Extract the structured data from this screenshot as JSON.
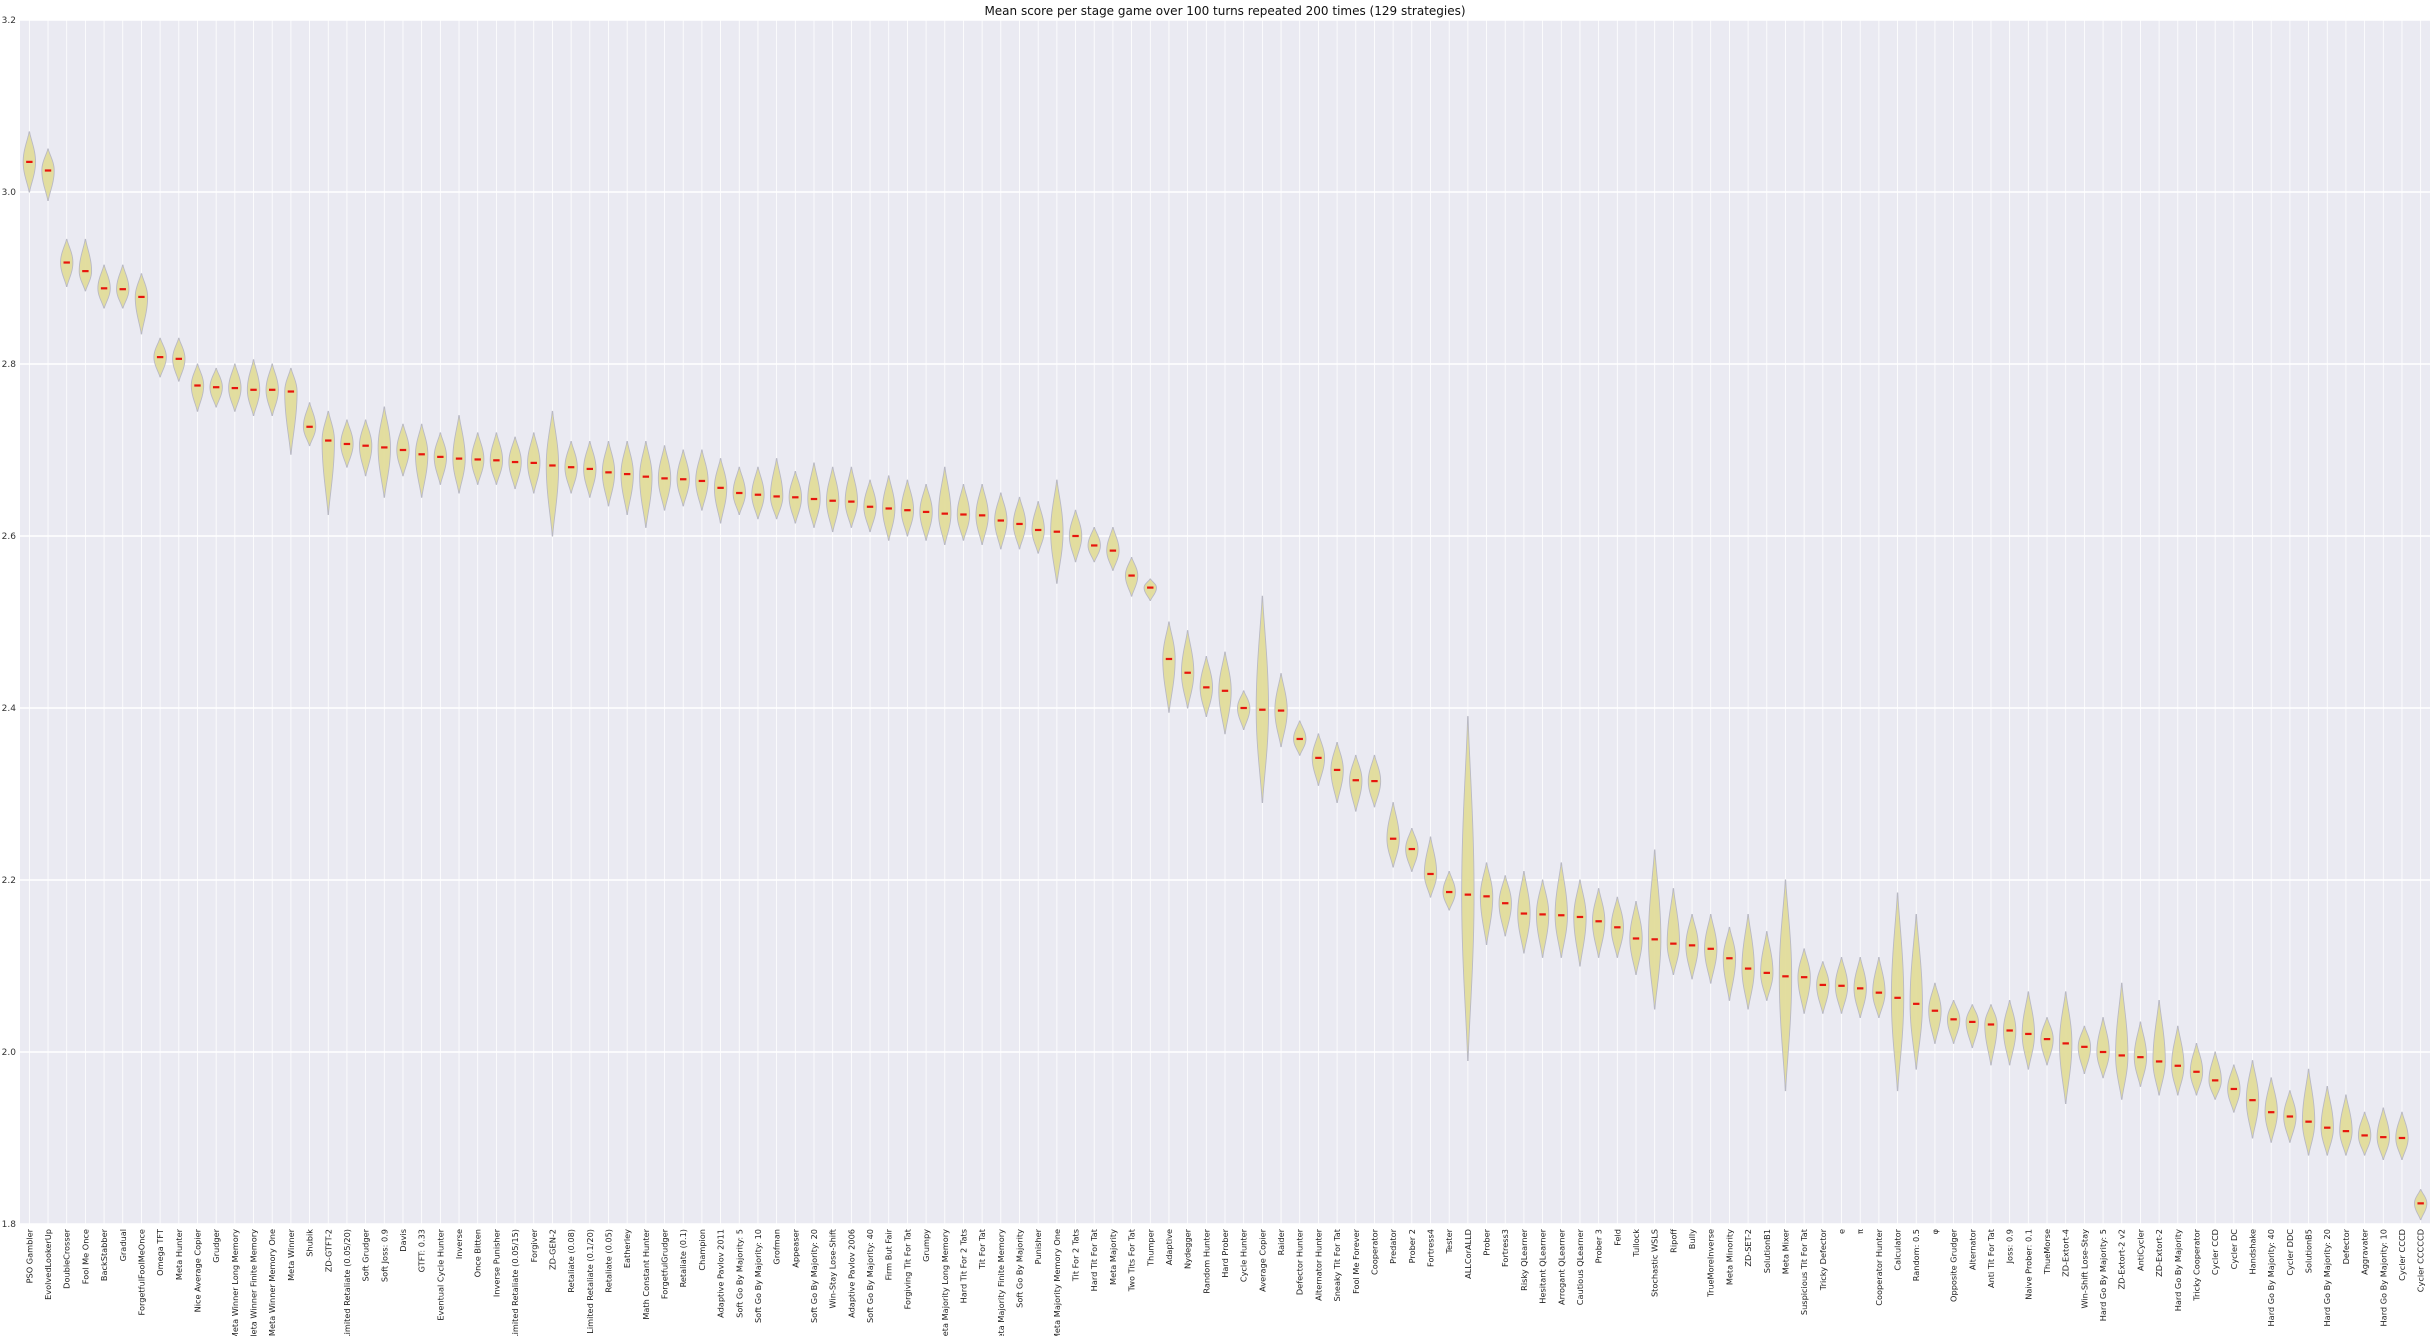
{
  "chart_data": {
    "type": "violin",
    "title": "Mean score per stage game over 100 turns repeated 200 times (129 strategies)",
    "xlabel": "",
    "ylabel": "",
    "ylim": [
      1.8,
      3.2
    ],
    "yticks": [
      1.8,
      2.0,
      2.2,
      2.4,
      2.6,
      2.8,
      3.0,
      3.2
    ],
    "ytick_labels": [
      "1.8",
      "2.0",
      "2.2",
      "2.4",
      "2.6",
      "2.8",
      "3.0",
      "3.2"
    ],
    "grid": true,
    "colors": {
      "background": "#eaeaf2",
      "grid": "#ffffff",
      "violin": "#e2dc9a",
      "median": "#e8150c"
    },
    "categories": [
      "PSO Gambler",
      "EvolvedLookerUp",
      "DoubleCrosser",
      "Fool Me Once",
      "BackStabber",
      "Gradual",
      "ForgetfulFoolMeOnce",
      "Omega TFT",
      "Meta Hunter",
      "Nice Average Copier",
      "Grudger",
      "Meta Winner Long Memory",
      "Meta Winner Finite Memory",
      "Meta Winner Memory One",
      "Meta Winner",
      "Shubik",
      "ZD-GTFT-2",
      "Limited Retaliate (0.05/20)",
      "Soft Grudger",
      "Soft Joss: 0.9",
      "Davis",
      "GTFT: 0.33",
      "Eventual Cycle Hunter",
      "Inverse",
      "Once Bitten",
      "Inverse Punisher",
      "Limited Retaliate (0.05/15)",
      "Forgiver",
      "ZD-GEN-2",
      "Retaliate (0.08)",
      "Limited Retaliate (0.1/20)",
      "Retaliate (0.05)",
      "Eatherley",
      "Math Constant Hunter",
      "ForgetfulGrudger",
      "Retaliate (0.1)",
      "Champion",
      "Adaptive Pavlov 2011",
      "Soft Go By Majority: 5",
      "Soft Go By Majority: 10",
      "Grofman",
      "Appeaser",
      "Soft Go By Majority: 20",
      "Win-Stay Lose-Shift",
      "Adaptive Pavlov 2006",
      "Soft Go By Majority: 40",
      "Firm But Fair",
      "Forgiving Tit For Tat",
      "Grumpy",
      "Meta Majority Long Memory",
      "Hard Tit For 2 Tats",
      "Tit For Tat",
      "Meta Majority Finite Memory",
      "Soft Go By Majority",
      "Punisher",
      "Meta Majority Memory One",
      "Tit For 2 Tats",
      "Hard Tit For Tat",
      "Meta Majority",
      "Two Tits For Tat",
      "Thumper",
      "Adaptive",
      "Nydegger",
      "Random Hunter",
      "Hard Prober",
      "Cycle Hunter",
      "Average Copier",
      "Raider",
      "Defector Hunter",
      "Alternator Hunter",
      "Sneaky Tit For Tat",
      "Fool Me Forever",
      "Cooperator",
      "Predator",
      "Prober 2",
      "Fortress4",
      "Tester",
      "ALLCorALLD",
      "Prober",
      "Fortress3",
      "Risky QLearner",
      "Hesitant QLearner",
      "Arrogant QLearner",
      "Cautious QLearner",
      "Prober 3",
      "Feld",
      "Tullock",
      "Stochastic WSLS",
      "Ripoff",
      "Bully",
      "TrueMoreInverse",
      "Meta Minority",
      "ZD-SET-2",
      "SolutionB1",
      "Meta Mixer",
      "Suspicious Tit For Tat",
      "Tricky Defector",
      "e",
      "π",
      "Cooperator Hunter",
      "Calculator",
      "Random: 0.5",
      "φ",
      "Opposite Grudger",
      "Alternator",
      "Anti Tit For Tat",
      "Joss: 0.9",
      "Naive Prober: 0.1",
      "ThueMorse",
      "ZD-Extort-4",
      "Win-Shift Lose-Stay",
      "Hard Go By Majority: 5",
      "ZD-Extort-2 v2",
      "AntiCycler",
      "ZD-Extort-2",
      "Hard Go By Majority",
      "Tricky Cooperator",
      "Cycler CCD",
      "Cycler DC",
      "Handshake",
      "Hard Go By Majority: 40",
      "Cycler DDC",
      "SolutionB5",
      "Hard Go By Majority: 20",
      "Defector",
      "Aggravater",
      "Hard Go By Majority: 10",
      "Cycler CCCD",
      "Cycler CCCCCD"
    ],
    "medians": [
      3.035,
      3.025,
      2.918,
      2.908,
      2.888,
      2.887,
      2.878,
      2.808,
      2.806,
      2.775,
      2.773,
      2.772,
      2.77,
      2.77,
      2.768,
      2.727,
      2.711,
      2.707,
      2.705,
      2.703,
      2.7,
      2.695,
      2.692,
      2.69,
      2.689,
      2.688,
      2.686,
      2.685,
      2.682,
      2.68,
      2.678,
      2.674,
      2.672,
      2.669,
      2.667,
      2.666,
      2.664,
      2.656,
      2.65,
      2.648,
      2.646,
      2.645,
      2.643,
      2.641,
      2.64,
      2.634,
      2.632,
      2.63,
      2.628,
      2.626,
      2.625,
      2.624,
      2.618,
      2.614,
      2.607,
      2.605,
      2.6,
      2.589,
      2.583,
      2.554,
      2.54,
      2.457,
      2.441,
      2.424,
      2.42,
      2.4,
      2.398,
      2.397,
      2.364,
      2.342,
      2.328,
      2.316,
      2.315,
      2.248,
      2.236,
      2.207,
      2.186,
      2.183,
      2.181,
      2.173,
      2.161,
      2.16,
      2.159,
      2.157,
      2.152,
      2.145,
      2.132,
      2.131,
      2.126,
      2.124,
      2.12,
      2.109,
      2.097,
      2.092,
      2.088,
      2.087,
      2.078,
      2.077,
      2.074,
      2.069,
      2.063,
      2.056,
      2.048,
      2.038,
      2.035,
      2.032,
      2.025,
      2.021,
      2.015,
      2.01,
      2.006,
      2.0,
      1.996,
      1.994,
      1.989,
      1.984,
      1.977,
      1.967,
      1.957,
      1.944,
      1.93,
      1.925,
      1.919,
      1.912,
      1.908,
      1.903,
      1.901,
      1.9,
      1.824
    ],
    "ranges": [
      [
        3.0,
        3.07
      ],
      [
        2.99,
        3.05
      ],
      [
        2.89,
        2.945
      ],
      [
        2.885,
        2.945
      ],
      [
        2.865,
        2.915
      ],
      [
        2.865,
        2.915
      ],
      [
        2.835,
        2.905
      ],
      [
        2.785,
        2.83
      ],
      [
        2.78,
        2.83
      ],
      [
        2.745,
        2.8
      ],
      [
        2.75,
        2.795
      ],
      [
        2.745,
        2.8
      ],
      [
        2.74,
        2.805
      ],
      [
        2.74,
        2.8
      ],
      [
        2.695,
        2.795
      ],
      [
        2.705,
        2.755
      ],
      [
        2.625,
        2.745
      ],
      [
        2.68,
        2.735
      ],
      [
        2.67,
        2.735
      ],
      [
        2.645,
        2.75
      ],
      [
        2.67,
        2.73
      ],
      [
        2.645,
        2.73
      ],
      [
        2.66,
        2.72
      ],
      [
        2.65,
        2.74
      ],
      [
        2.66,
        2.72
      ],
      [
        2.66,
        2.72
      ],
      [
        2.655,
        2.715
      ],
      [
        2.65,
        2.72
      ],
      [
        2.6,
        2.745
      ],
      [
        2.65,
        2.71
      ],
      [
        2.645,
        2.71
      ],
      [
        2.635,
        2.71
      ],
      [
        2.625,
        2.71
      ],
      [
        2.61,
        2.71
      ],
      [
        2.63,
        2.705
      ],
      [
        2.635,
        2.7
      ],
      [
        2.63,
        2.7
      ],
      [
        2.615,
        2.69
      ],
      [
        2.625,
        2.68
      ],
      [
        2.62,
        2.68
      ],
      [
        2.62,
        2.69
      ],
      [
        2.615,
        2.675
      ],
      [
        2.61,
        2.685
      ],
      [
        2.605,
        2.68
      ],
      [
        2.61,
        2.68
      ],
      [
        2.605,
        2.665
      ],
      [
        2.595,
        2.67
      ],
      [
        2.6,
        2.665
      ],
      [
        2.595,
        2.66
      ],
      [
        2.59,
        2.68
      ],
      [
        2.595,
        2.66
      ],
      [
        2.59,
        2.66
      ],
      [
        2.585,
        2.65
      ],
      [
        2.585,
        2.645
      ],
      [
        2.58,
        2.64
      ],
      [
        2.545,
        2.665
      ],
      [
        2.57,
        2.63
      ],
      [
        2.57,
        2.61
      ],
      [
        2.56,
        2.61
      ],
      [
        2.53,
        2.575
      ],
      [
        2.525,
        2.55
      ],
      [
        2.395,
        2.5
      ],
      [
        2.4,
        2.49
      ],
      [
        2.39,
        2.46
      ],
      [
        2.37,
        2.465
      ],
      [
        2.375,
        2.42
      ],
      [
        2.29,
        2.53
      ],
      [
        2.355,
        2.44
      ],
      [
        2.345,
        2.385
      ],
      [
        2.31,
        2.37
      ],
      [
        2.29,
        2.36
      ],
      [
        2.28,
        2.345
      ],
      [
        2.285,
        2.345
      ],
      [
        2.215,
        2.29
      ],
      [
        2.21,
        2.26
      ],
      [
        2.18,
        2.25
      ],
      [
        2.165,
        2.21
      ],
      [
        1.99,
        2.39
      ],
      [
        2.125,
        2.22
      ],
      [
        2.135,
        2.205
      ],
      [
        2.115,
        2.21
      ],
      [
        2.11,
        2.2
      ],
      [
        2.11,
        2.22
      ],
      [
        2.1,
        2.2
      ],
      [
        2.11,
        2.19
      ],
      [
        2.11,
        2.18
      ],
      [
        2.09,
        2.175
      ],
      [
        2.05,
        2.235
      ],
      [
        2.09,
        2.19
      ],
      [
        2.085,
        2.16
      ],
      [
        2.08,
        2.16
      ],
      [
        2.06,
        2.145
      ],
      [
        2.05,
        2.16
      ],
      [
        2.06,
        2.14
      ],
      [
        1.955,
        2.2
      ],
      [
        2.045,
        2.12
      ],
      [
        2.045,
        2.105
      ],
      [
        2.045,
        2.11
      ],
      [
        2.04,
        2.11
      ],
      [
        2.04,
        2.11
      ],
      [
        1.955,
        2.185
      ],
      [
        1.98,
        2.16
      ],
      [
        2.01,
        2.08
      ],
      [
        2.01,
        2.06
      ],
      [
        2.005,
        2.055
      ],
      [
        1.985,
        2.055
      ],
      [
        1.985,
        2.06
      ],
      [
        1.98,
        2.07
      ],
      [
        1.985,
        2.04
      ],
      [
        1.94,
        2.07
      ],
      [
        1.975,
        2.03
      ],
      [
        1.97,
        2.04
      ],
      [
        1.945,
        2.08
      ],
      [
        1.96,
        2.035
      ],
      [
        1.95,
        2.06
      ],
      [
        1.95,
        2.03
      ],
      [
        1.95,
        2.01
      ],
      [
        1.945,
        2.0
      ],
      [
        1.93,
        1.985
      ],
      [
        1.9,
        1.99
      ],
      [
        1.895,
        1.97
      ],
      [
        1.895,
        1.955
      ],
      [
        1.88,
        1.98
      ],
      [
        1.88,
        1.96
      ],
      [
        1.88,
        1.95
      ],
      [
        1.88,
        1.93
      ],
      [
        1.875,
        1.935
      ],
      [
        1.875,
        1.93
      ],
      [
        1.805,
        1.84
      ]
    ]
  }
}
